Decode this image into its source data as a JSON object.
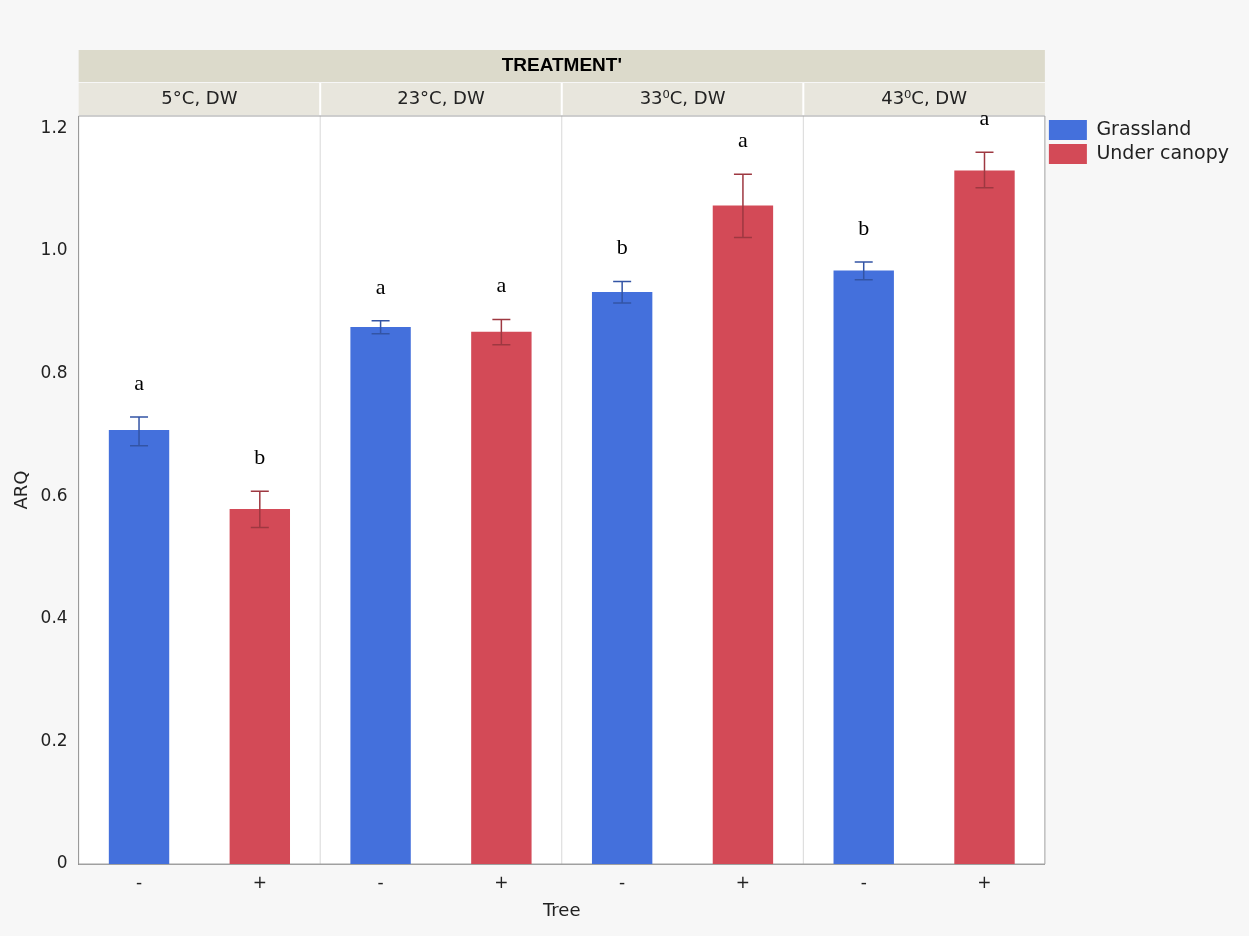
{
  "chart_data": {
    "type": "bar",
    "title": "TREATMENT'",
    "xlabel": "Tree",
    "ylabel": "ARQ",
    "categories": [
      "-",
      "+",
      "-",
      "+",
      "-",
      "+",
      "-",
      "+"
    ],
    "series": [
      {
        "name": "Grassland",
        "color": "#4470dc",
        "values": [
          0.708,
          null,
          0.876,
          null,
          0.933,
          null,
          0.968,
          null
        ],
        "errors": [
          [
            0.682,
            0.729
          ],
          null,
          [
            0.865,
            0.886
          ],
          null,
          [
            0.915,
            0.95
          ],
          null,
          [
            0.953,
            0.982
          ],
          null
        ]
      },
      {
        "name": "Under canopy",
        "color": "#d34a57",
        "values": [
          null,
          0.579,
          null,
          0.868,
          null,
          1.074,
          null,
          1.131
        ],
        "errors": [
          null,
          [
            0.549,
            0.608
          ],
          null,
          [
            0.847,
            0.888
          ],
          null,
          [
            1.022,
            1.125
          ],
          null,
          [
            1.103,
            1.161
          ]
        ]
      }
    ],
    "ylim": [
      0,
      1.22
    ],
    "yticks": [
      0,
      0.2,
      0.4,
      0.6,
      0.8,
      {
        "value": 1,
        "label": "1.0"
      },
      {
        "value": 1.2,
        "label": "1.2"
      }
    ],
    "legend": "top right",
    "grid": false,
    "annotations": [
      "5°C, DW",
      "23°C, DW",
      "33⁰C, DW",
      "43⁰C, DW",
      "a",
      "b",
      "a",
      "a",
      "b",
      "a",
      "b",
      "a"
    ]
  }
}
